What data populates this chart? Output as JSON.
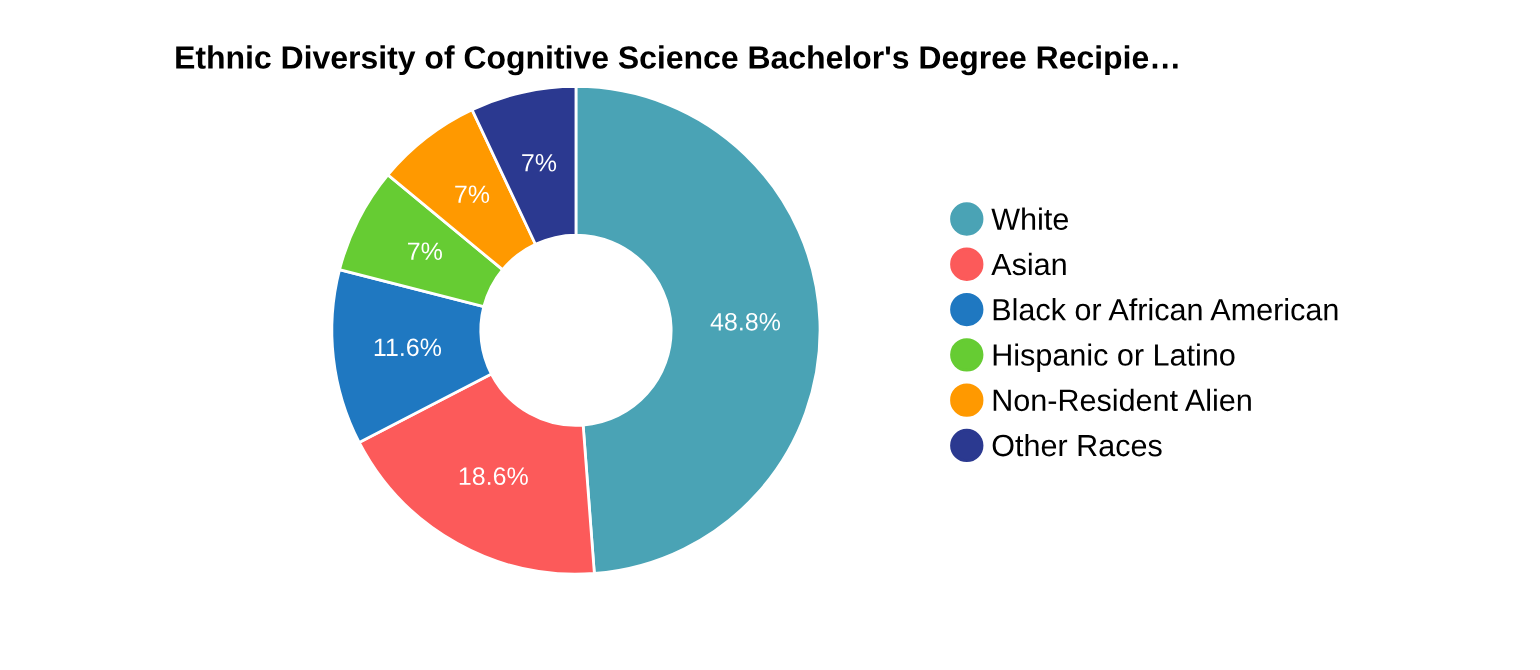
{
  "chart_data": {
    "type": "donut",
    "title": "Ethnic Diversity of Cognitive Science Bachelor's Degree Recipie…",
    "categories": [
      "White",
      "Asian",
      "Black or African American",
      "Hispanic or Latino",
      "Non-Resident Alien",
      "Other Races"
    ],
    "values": [
      48.8,
      18.6,
      11.6,
      7,
      7,
      7
    ],
    "value_labels": [
      "48.8%",
      "18.6%",
      "11.6%",
      "7%",
      "7%",
      "7%"
    ],
    "colors": [
      "#4aa3b5",
      "#fc5a5a",
      "#1f78c1",
      "#66cc33",
      "#ff9900",
      "#2b3990"
    ],
    "legend": "right"
  }
}
